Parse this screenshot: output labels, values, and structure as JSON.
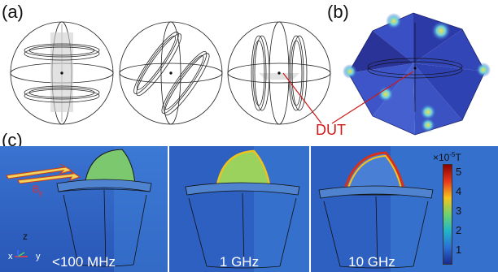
{
  "panel_labels": {
    "a": "(a)",
    "b": "(b)",
    "c": "(c)"
  },
  "dut_label": "DUT",
  "field_label": "B",
  "field_subscript": "y",
  "axis_labels": {
    "z": "z",
    "x": "x",
    "y": "y"
  },
  "frequencies": [
    "<100 MHz",
    "1 GHz",
    "10 GHz"
  ],
  "colorbar": {
    "unit_prefix": "×10",
    "unit_exponent": "-5",
    "unit_symbol": "T",
    "ticks": [
      "5",
      "4",
      "3",
      "2",
      "1"
    ],
    "colors": [
      "#8b0000",
      "#e8381c",
      "#f6c21b",
      "#6ed36f",
      "#1fb6c9",
      "#2a6fd6",
      "#1a2a8c"
    ]
  }
}
